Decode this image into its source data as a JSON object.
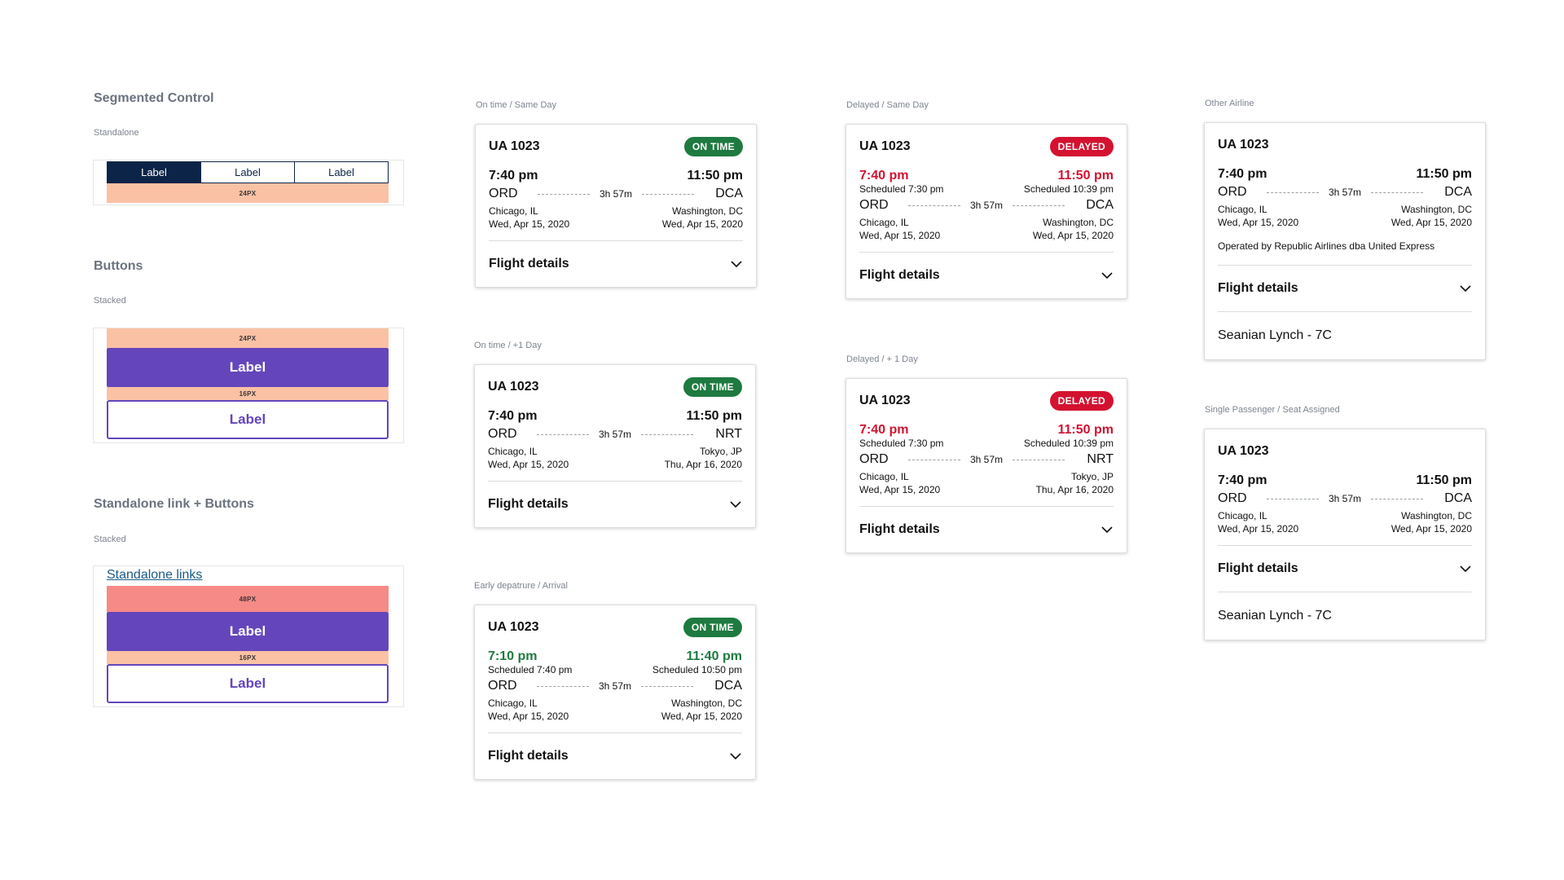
{
  "left": {
    "segmented": {
      "title": "Segmented Control",
      "sublabel": "Standalone",
      "items": [
        "Label",
        "Label",
        "Label"
      ],
      "spacer": "24PX"
    },
    "buttons": {
      "title": "Buttons",
      "sublabel": "Stacked",
      "spacer_top": "24PX",
      "primary": "Label",
      "spacer_mid": "16PX",
      "secondary": "Label"
    },
    "link_buttons": {
      "title": "Standalone link + Buttons",
      "sublabel": "Stacked",
      "link": "Standalone links",
      "spacer_top": "48PX",
      "primary": "Label",
      "spacer_mid": "16PX",
      "secondary": "Label"
    }
  },
  "cards": [
    {
      "label": "On time / Same Day",
      "flight": "UA 1023",
      "status": "ON TIME",
      "dep_time": "7:40 pm",
      "arr_time": "11:50 pm",
      "from": "ORD",
      "to": "DCA",
      "duration": "3h 57m",
      "from_city": "Chicago, IL",
      "to_city": "Washington, DC",
      "dep_date": "Wed, Apr 15, 2020",
      "arr_date": "Wed, Apr 15, 2020",
      "details": "Flight details"
    },
    {
      "label": "On time / +1 Day",
      "flight": "UA 1023",
      "status": "ON TIME",
      "dep_time": "7:40 pm",
      "arr_time": "11:50 pm",
      "from": "ORD",
      "to": "NRT",
      "duration": "3h 57m",
      "from_city": "Chicago, IL",
      "to_city": "Tokyo, JP",
      "dep_date": "Wed, Apr 15, 2020",
      "arr_date": "Thu, Apr 16, 2020",
      "details": "Flight details"
    },
    {
      "label": "Early depatrure / Arrival",
      "flight": "UA 1023",
      "status": "ON TIME",
      "dep_time": "7:10 pm",
      "arr_time": "11:40 pm",
      "dep_sched": "Scheduled 7:40 pm",
      "arr_sched": "Scheduled 10:50 pm",
      "from": "ORD",
      "to": "DCA",
      "duration": "3h 57m",
      "from_city": "Chicago, IL",
      "to_city": "Washington, DC",
      "dep_date": "Wed, Apr 15, 2020",
      "arr_date": "Wed, Apr 15, 2020",
      "details": "Flight details"
    },
    {
      "label": "Delayed / Same Day",
      "flight": "UA 1023",
      "status": "DELAYED",
      "dep_time": "7:40 pm",
      "arr_time": "11:50 pm",
      "dep_sched": "Scheduled 7:30 pm",
      "arr_sched": "Scheduled 10:39 pm",
      "from": "ORD",
      "to": "DCA",
      "duration": "3h 57m",
      "from_city": "Chicago, IL",
      "to_city": "Washington, DC",
      "dep_date": "Wed, Apr 15, 2020",
      "arr_date": "Wed, Apr 15, 2020",
      "details": "Flight details"
    },
    {
      "label": "Delayed / + 1 Day",
      "flight": "UA 1023",
      "status": "DELAYED",
      "dep_time": "7:40 pm",
      "arr_time": "11:50 pm",
      "dep_sched": "Scheduled 7:30 pm",
      "arr_sched": "Scheduled 10:39 pm",
      "from": "ORD",
      "to": "NRT",
      "duration": "3h 57m",
      "from_city": "Chicago, IL",
      "to_city": "Tokyo, JP",
      "dep_date": "Wed, Apr 15, 2020",
      "arr_date": "Thu, Apr 16, 2020",
      "details": "Flight details"
    },
    {
      "label": "Other Airline",
      "flight": "UA 1023",
      "dep_time": "7:40 pm",
      "arr_time": "11:50 pm",
      "from": "ORD",
      "to": "DCA",
      "duration": "3h 57m",
      "from_city": "Chicago, IL",
      "to_city": "Washington, DC",
      "dep_date": "Wed, Apr 15, 2020",
      "arr_date": "Wed, Apr 15, 2020",
      "operated_by": "Operated by Republic Airlines dba United Express",
      "details": "Flight details",
      "passenger": "Seanian Lynch - 7C"
    },
    {
      "label": "Single Passenger / Seat Assigned",
      "flight": "UA 1023",
      "dep_time": "7:40 pm",
      "arr_time": "11:50 pm",
      "from": "ORD",
      "to": "DCA",
      "duration": "3h 57m",
      "from_city": "Chicago, IL",
      "to_city": "Washington, DC",
      "dep_date": "Wed, Apr 15, 2020",
      "arr_date": "Wed, Apr 15, 2020",
      "details": "Flight details",
      "passenger": "Seanian Lynch - 7C"
    }
  ],
  "colors": {
    "navy": "#0b2447",
    "purple": "#6445bb",
    "on_time_green": "#1e7a40",
    "delayed_red": "#d41230",
    "spacer_peach": "#fbc1a4",
    "spacer_red": "#f68a86"
  }
}
